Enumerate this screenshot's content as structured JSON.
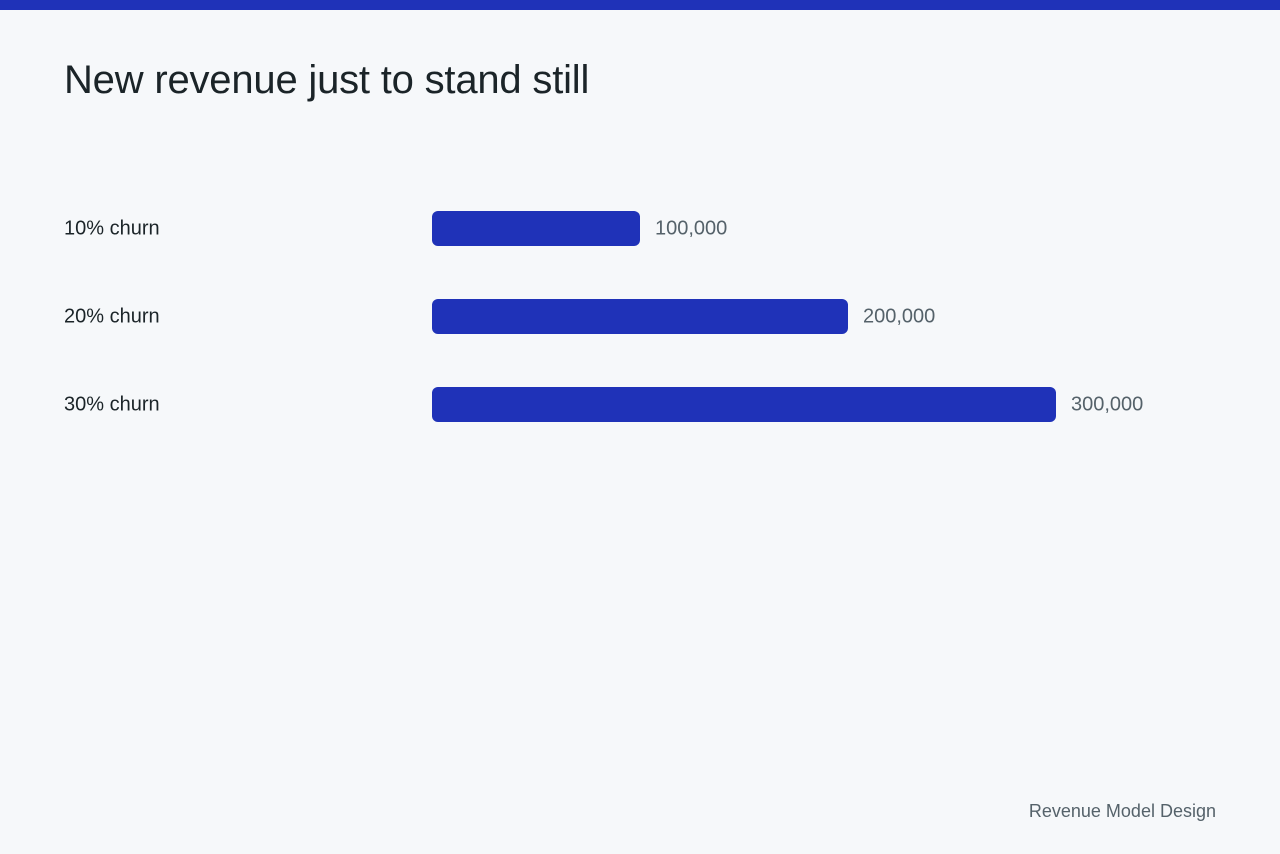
{
  "slide": {
    "title": "New revenue just to stand still",
    "footer": "Revenue Model Design"
  },
  "colors": {
    "accent": "#1f32b8",
    "background": "#f6f8fa",
    "text": "#1b2428",
    "muted_text": "#55626a"
  },
  "chart_data": {
    "type": "bar",
    "orientation": "horizontal",
    "categories": [
      "10% churn",
      "20% churn",
      "30% churn"
    ],
    "values": [
      100000,
      200000,
      300000
    ],
    "value_labels": [
      "100,000",
      "200,000",
      "300,000"
    ],
    "title": "New revenue just to stand still",
    "xlim": [
      0,
      300000
    ],
    "grid": false,
    "legend": "none"
  }
}
